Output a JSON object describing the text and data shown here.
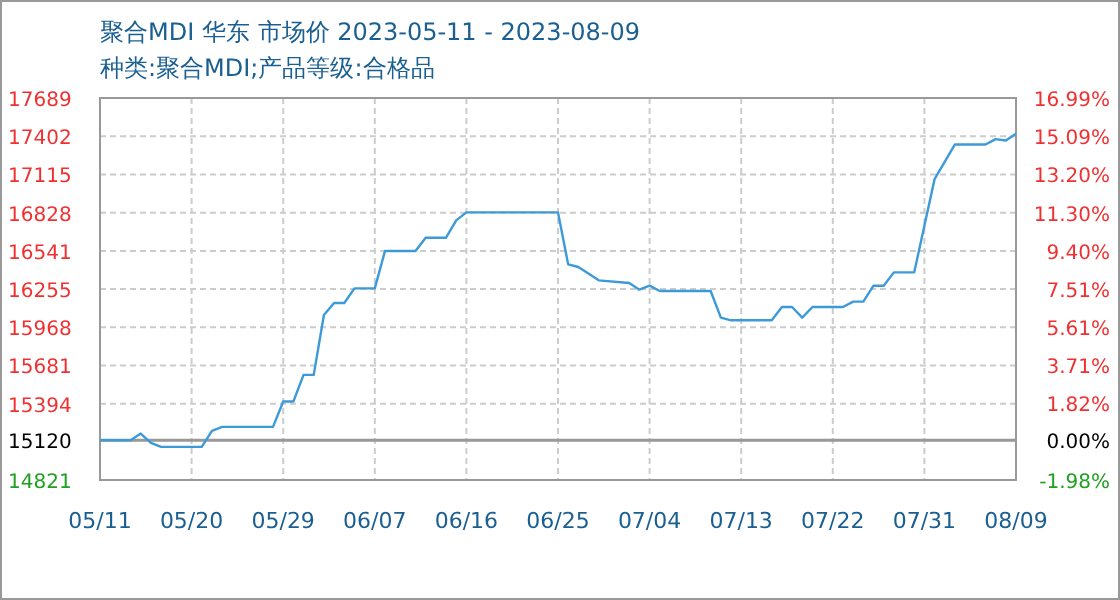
{
  "chart_data": {
    "type": "line",
    "title": "聚合MDI 华东 市场价 2023-05-11 - 2023-08-09",
    "subtitle": "种类:聚合MDI;产品等级:合格品",
    "x": [
      "2023-05-11",
      "2023-05-14",
      "2023-05-15",
      "2023-05-16",
      "2023-05-17",
      "2023-05-21",
      "2023-05-22",
      "2023-05-23",
      "2023-05-28",
      "2023-05-29",
      "2023-05-30",
      "2023-05-31",
      "2023-06-01",
      "2023-06-02",
      "2023-06-03",
      "2023-06-04",
      "2023-06-05",
      "2023-06-07",
      "2023-06-08",
      "2023-06-11",
      "2023-06-12",
      "2023-06-14",
      "2023-06-15",
      "2023-06-16",
      "2023-06-25",
      "2023-06-26",
      "2023-06-27",
      "2023-06-29",
      "2023-07-02",
      "2023-07-03",
      "2023-07-04",
      "2023-07-05",
      "2023-07-10",
      "2023-07-11",
      "2023-07-12",
      "2023-07-16",
      "2023-07-17",
      "2023-07-18",
      "2023-07-19",
      "2023-07-20",
      "2023-07-23",
      "2023-07-24",
      "2023-07-25",
      "2023-07-26",
      "2023-07-27",
      "2023-07-28",
      "2023-07-30",
      "2023-07-31",
      "2023-08-01",
      "2023-08-03",
      "2023-08-06",
      "2023-08-07",
      "2023-08-08",
      "2023-08-09"
    ],
    "series": [
      {
        "color": "#3d9ad9",
        "values": [
          15120,
          15120,
          15170,
          15100,
          15070,
          15070,
          15190,
          15220,
          15220,
          15410,
          15410,
          15610,
          15610,
          16060,
          16150,
          16150,
          16260,
          16260,
          16540,
          16540,
          16640,
          16640,
          16770,
          16830,
          16830,
          16440,
          16420,
          16320,
          16300,
          16250,
          16280,
          16240,
          16240,
          16040,
          16020,
          16020,
          16120,
          16120,
          16040,
          16120,
          16120,
          16160,
          16160,
          16280,
          16280,
          16380,
          16380,
          16730,
          17080,
          17340,
          17340,
          17380,
          17370,
          17420
        ]
      }
    ],
    "xlim": [
      "2023-05-11",
      "2023-08-09"
    ],
    "xticks": [
      {
        "value": "2023-05-11",
        "label": "05/11"
      },
      {
        "value": "2023-05-20",
        "label": "05/20"
      },
      {
        "value": "2023-05-29",
        "label": "05/29"
      },
      {
        "value": "2023-06-07",
        "label": "06/07"
      },
      {
        "value": "2023-06-16",
        "label": "06/16"
      },
      {
        "value": "2023-06-25",
        "label": "06/25"
      },
      {
        "value": "2023-07-04",
        "label": "07/04"
      },
      {
        "value": "2023-07-13",
        "label": "07/13"
      },
      {
        "value": "2023-07-22",
        "label": "07/22"
      },
      {
        "value": "2023-07-31",
        "label": "07/31"
      },
      {
        "value": "2023-08-09",
        "label": "08/09"
      }
    ],
    "ylim": [
      14821,
      17689
    ],
    "yticks": [
      14821,
      15120,
      15394,
      15681,
      15968,
      16255,
      16541,
      16828,
      17115,
      17402,
      17689
    ],
    "y2lim": [
      -1.98,
      16.99
    ],
    "y2ticks": [
      {
        "value": -1.98,
        "label": "-1.98%"
      },
      {
        "value": 0,
        "label": "0.00%"
      },
      {
        "value": 1.82,
        "label": "1.82%"
      },
      {
        "value": 3.71,
        "label": "3.71%"
      },
      {
        "value": 5.61,
        "label": "5.61%"
      },
      {
        "value": 7.51,
        "label": "7.51%"
      },
      {
        "value": 9.4,
        "label": "9.40%"
      },
      {
        "value": 11.3,
        "label": "11.30%"
      },
      {
        "value": 13.2,
        "label": "13.20%"
      },
      {
        "value": 15.09,
        "label": "15.09%"
      },
      {
        "value": 16.99,
        "label": "16.99%"
      }
    ],
    "grid": true,
    "ref_lines": [
      {
        "axis": "y",
        "value": 15120,
        "color": "#999999"
      }
    ]
  }
}
